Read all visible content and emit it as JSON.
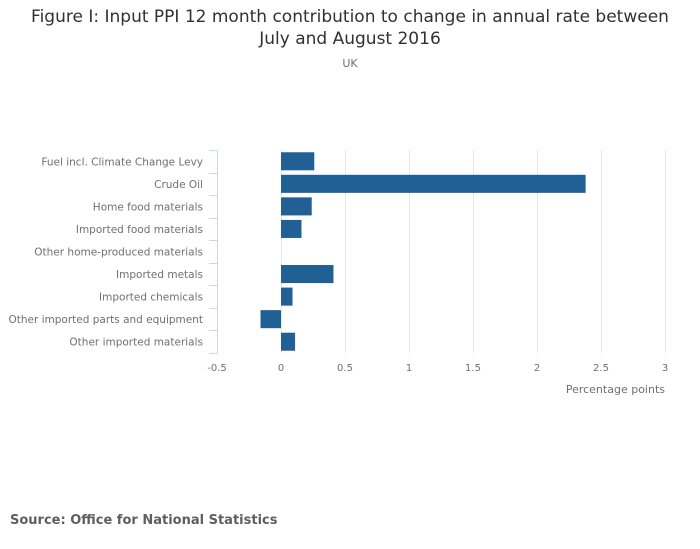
{
  "title": "Figure I: Input PPI 12 month contribution to change in annual rate between July and August 2016",
  "title_line1": "Figure I: Input PPI 12 month contribution to change in annual rate between",
  "title_line2": "July and August 2016",
  "subtitle": "UK",
  "source": "Source: Office for National Statistics",
  "colors": {
    "bar": "#206095",
    "grid": "#e6e6e6",
    "axis": "#ccd6eb",
    "text": "#707071"
  },
  "chart_data": {
    "type": "bar",
    "orientation": "horizontal",
    "title": "Figure I: Input PPI 12 month contribution to change in annual rate between July and August 2016",
    "subtitle": "UK",
    "categories": [
      "Fuel incl. Climate Change Levy",
      "Crude Oil",
      "Home food materials",
      "Imported food materials",
      "Other home-produced materials",
      "Imported metals",
      "Imported chemicals",
      "Other imported parts and equipment",
      "Other imported materials"
    ],
    "values": [
      0.26,
      2.38,
      0.24,
      0.16,
      0.0,
      0.41,
      0.09,
      -0.16,
      0.11
    ],
    "xlabel": "Percentage points",
    "ylabel": "",
    "xlim": [
      -0.5,
      3
    ],
    "xticks": [
      -0.5,
      0,
      0.5,
      1,
      1.5,
      2,
      2.5,
      3
    ],
    "xtick_labels": [
      "-0.5",
      "0",
      "0.5",
      "1",
      "1.5",
      "2",
      "2.5",
      "3"
    ],
    "grid": true,
    "legend": "none"
  }
}
